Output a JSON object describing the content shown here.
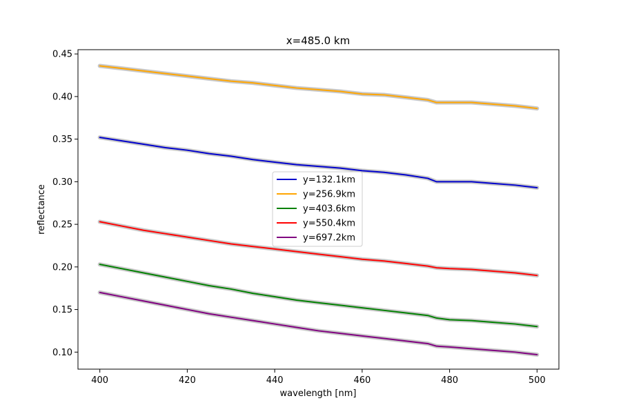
{
  "chart_data": {
    "type": "line",
    "title": "x=485.0 km",
    "xlabel": "wavelength [nm]",
    "ylabel": "reflectance",
    "xlim": [
      395,
      505
    ],
    "ylim": [
      0.08,
      0.455
    ],
    "xticks": [
      400,
      420,
      440,
      460,
      480,
      500
    ],
    "xtick_labels": [
      "400",
      "420",
      "440",
      "460",
      "480",
      "500"
    ],
    "yticks": [
      0.1,
      0.15,
      0.2,
      0.25,
      0.3,
      0.35,
      0.4,
      0.45
    ],
    "ytick_labels": [
      "0.10",
      "0.15",
      "0.20",
      "0.25",
      "0.30",
      "0.35",
      "0.40",
      "0.45"
    ],
    "grid": false,
    "legend_position": "center",
    "uncertainty_band_color": "#c8c8c8",
    "x": [
      400,
      405,
      410,
      415,
      420,
      425,
      430,
      435,
      440,
      445,
      450,
      455,
      460,
      465,
      470,
      475,
      477,
      480,
      485,
      490,
      495,
      500
    ],
    "series": [
      {
        "name": "y=132.1km",
        "color": "#0000cc",
        "values": [
          0.352,
          0.348,
          0.344,
          0.34,
          0.337,
          0.333,
          0.33,
          0.326,
          0.323,
          0.32,
          0.318,
          0.316,
          0.313,
          0.311,
          0.308,
          0.304,
          0.3,
          0.3,
          0.3,
          0.298,
          0.296,
          0.293
        ]
      },
      {
        "name": "y=256.9km",
        "color": "#ffa500",
        "values": [
          0.436,
          0.433,
          0.43,
          0.427,
          0.424,
          0.421,
          0.418,
          0.416,
          0.413,
          0.41,
          0.408,
          0.406,
          0.403,
          0.402,
          0.399,
          0.396,
          0.393,
          0.393,
          0.393,
          0.391,
          0.389,
          0.386
        ]
      },
      {
        "name": "y=403.6km",
        "color": "#008000",
        "values": [
          0.203,
          0.198,
          0.193,
          0.188,
          0.183,
          0.178,
          0.174,
          0.169,
          0.165,
          0.161,
          0.158,
          0.155,
          0.152,
          0.149,
          0.146,
          0.143,
          0.14,
          0.138,
          0.137,
          0.135,
          0.133,
          0.13
        ]
      },
      {
        "name": "y=550.4km",
        "color": "#ff0000",
        "values": [
          0.253,
          0.248,
          0.243,
          0.239,
          0.235,
          0.231,
          0.227,
          0.224,
          0.221,
          0.218,
          0.215,
          0.212,
          0.209,
          0.207,
          0.204,
          0.201,
          0.199,
          0.198,
          0.197,
          0.195,
          0.193,
          0.19
        ]
      },
      {
        "name": "y=697.2km",
        "color": "#800080",
        "values": [
          0.17,
          0.165,
          0.16,
          0.155,
          0.15,
          0.145,
          0.141,
          0.137,
          0.133,
          0.129,
          0.125,
          0.122,
          0.119,
          0.116,
          0.113,
          0.11,
          0.107,
          0.106,
          0.104,
          0.102,
          0.1,
          0.097
        ]
      }
    ]
  }
}
